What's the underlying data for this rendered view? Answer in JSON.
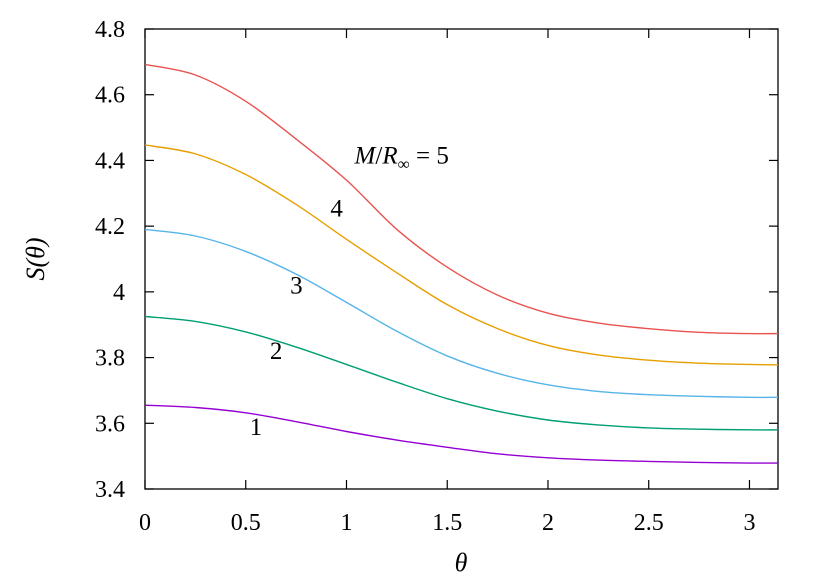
{
  "chart_data": {
    "type": "line",
    "xlabel": "θ",
    "ylabel": "S(θ)",
    "xlim": [
      0,
      3.14159
    ],
    "ylim": [
      3.4,
      4.8
    ],
    "xticks": [
      "0",
      "0.5",
      "1",
      "1.5",
      "2",
      "2.5",
      "3"
    ],
    "xtick_values": [
      0,
      0.5,
      1,
      1.5,
      2,
      2.5,
      3
    ],
    "yticks": [
      "3.4",
      "3.6",
      "3.8",
      "4",
      "4.2",
      "4.4",
      "4.6",
      "4.8"
    ],
    "ytick_values": [
      3.4,
      3.6,
      3.8,
      4.0,
      4.2,
      4.4,
      4.6,
      4.8
    ],
    "grid": false,
    "legend": "none",
    "series": [
      {
        "name": "1",
        "color": "#9400d3",
        "x": [
          0,
          0.25,
          0.5,
          0.75,
          1.0,
          1.25,
          1.5,
          1.75,
          2.0,
          2.25,
          2.5,
          2.75,
          3.0,
          3.14159
        ],
        "y": [
          3.655,
          3.648,
          3.632,
          3.605,
          3.575,
          3.549,
          3.527,
          3.507,
          3.495,
          3.488,
          3.484,
          3.481,
          3.479,
          3.479
        ]
      },
      {
        "name": "2",
        "color": "#009e73",
        "x": [
          0,
          0.25,
          0.5,
          0.75,
          1.0,
          1.25,
          1.5,
          1.75,
          2.0,
          2.25,
          2.5,
          2.75,
          3.0,
          3.14159
        ],
        "y": [
          3.925,
          3.91,
          3.878,
          3.832,
          3.779,
          3.725,
          3.675,
          3.637,
          3.61,
          3.595,
          3.586,
          3.582,
          3.58,
          3.58
        ]
      },
      {
        "name": "3",
        "color": "#56b4e9",
        "x": [
          0,
          0.25,
          0.5,
          0.75,
          1.0,
          1.25,
          1.5,
          1.75,
          2.0,
          2.25,
          2.5,
          2.75,
          3.0,
          3.14159
        ],
        "y": [
          4.19,
          4.17,
          4.123,
          4.054,
          3.968,
          3.88,
          3.805,
          3.752,
          3.717,
          3.697,
          3.687,
          3.682,
          3.679,
          3.679
        ]
      },
      {
        "name": "4",
        "color": "#e69f00",
        "x": [
          0,
          0.25,
          0.5,
          0.75,
          1.0,
          1.25,
          1.5,
          1.75,
          2.0,
          2.25,
          2.5,
          2.75,
          3.0,
          3.14159
        ],
        "y": [
          4.447,
          4.42,
          4.357,
          4.266,
          4.16,
          4.058,
          3.961,
          3.888,
          3.837,
          3.808,
          3.792,
          3.783,
          3.779,
          3.778
        ]
      },
      {
        "name": "5",
        "color": "#e8534f",
        "x": [
          0,
          0.25,
          0.5,
          0.75,
          1.0,
          1.25,
          1.5,
          1.75,
          2.0,
          2.25,
          2.5,
          2.75,
          3.0,
          3.14159
        ],
        "y": [
          4.692,
          4.66,
          4.58,
          4.465,
          4.34,
          4.19,
          4.075,
          3.99,
          3.935,
          3.905,
          3.888,
          3.877,
          3.873,
          3.873
        ]
      }
    ],
    "annotations": [
      {
        "series": "1",
        "text": "1",
        "x": 0.52,
        "y": 3.565
      },
      {
        "series": "2",
        "text": "2",
        "x": 0.62,
        "y": 3.795
      },
      {
        "series": "3",
        "text": "3",
        "x": 0.72,
        "y": 3.995
      },
      {
        "series": "4",
        "text": "4",
        "x": 0.92,
        "y": 4.23
      },
      {
        "series": "5",
        "text_parts": [
          "M",
          "/",
          "R",
          "∞",
          " = 5"
        ],
        "x": 1.04,
        "y": 4.39
      }
    ]
  }
}
